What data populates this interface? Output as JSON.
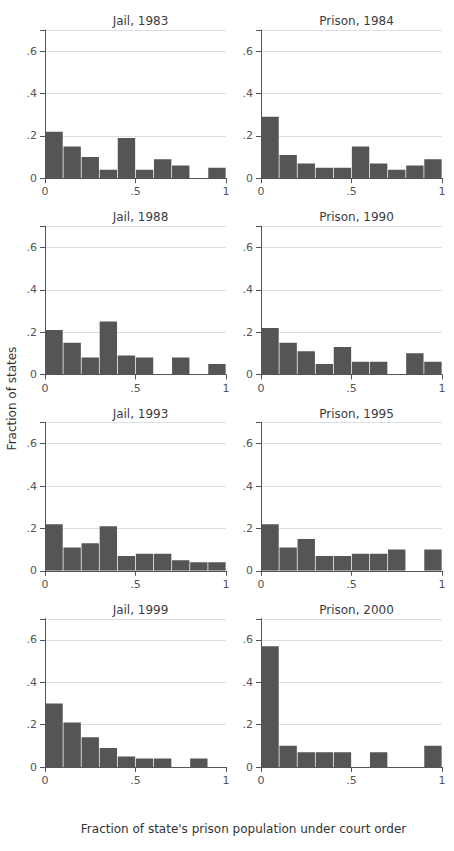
{
  "xlabel": "Fraction of state's prison population under court order",
  "ylabel": "Fraction of states",
  "chart_data": [
    {
      "type": "histogram",
      "title": "Jail, 1983",
      "color": "#555555",
      "grid": true,
      "bins": [
        0,
        0.1,
        0.2,
        0.3,
        0.4,
        0.5,
        0.6,
        0.7,
        0.8,
        0.9,
        1
      ],
      "values": [
        0.22,
        0.15,
        0.1,
        0.04,
        0.19,
        0.04,
        0.09,
        0.06,
        0.0,
        0.05
      ],
      "xlim": [
        0,
        1
      ],
      "xticks": [
        0,
        {
          "value": 0.5,
          "label": ".5"
        },
        1
      ],
      "ylim": [
        0,
        0.7
      ],
      "yticks": [
        0,
        {
          "value": 0.2,
          "label": ".2"
        },
        {
          "value": 0.4,
          "label": ".4"
        },
        {
          "value": 0.6,
          "label": ".6"
        }
      ]
    },
    {
      "type": "histogram",
      "title": "Prison, 1984",
      "color": "#555555",
      "grid": true,
      "bins": [
        0,
        0.1,
        0.2,
        0.3,
        0.4,
        0.5,
        0.6,
        0.7,
        0.8,
        0.9,
        1
      ],
      "values": [
        0.29,
        0.11,
        0.07,
        0.05,
        0.05,
        0.15,
        0.07,
        0.04,
        0.06,
        0.09
      ],
      "xlim": [
        0,
        1
      ],
      "xticks": [
        0,
        {
          "value": 0.5,
          "label": ".5"
        },
        1
      ],
      "ylim": [
        0,
        0.7
      ],
      "yticks": [
        0,
        {
          "value": 0.2,
          "label": ".2"
        },
        {
          "value": 0.4,
          "label": ".4"
        },
        {
          "value": 0.6,
          "label": ".6"
        }
      ]
    },
    {
      "type": "histogram",
      "title": "Jail, 1988",
      "color": "#555555",
      "grid": true,
      "bins": [
        0,
        0.1,
        0.2,
        0.3,
        0.4,
        0.5,
        0.6,
        0.7,
        0.8,
        0.9,
        1
      ],
      "values": [
        0.21,
        0.15,
        0.08,
        0.25,
        0.09,
        0.08,
        0.0,
        0.08,
        0.0,
        0.05
      ],
      "xlim": [
        0,
        1
      ],
      "xticks": [
        0,
        {
          "value": 0.5,
          "label": ".5"
        },
        1
      ],
      "ylim": [
        0,
        0.7
      ],
      "yticks": [
        0,
        {
          "value": 0.2,
          "label": ".2"
        },
        {
          "value": 0.4,
          "label": ".4"
        },
        {
          "value": 0.6,
          "label": ".6"
        }
      ]
    },
    {
      "type": "histogram",
      "title": "Prison, 1990",
      "color": "#555555",
      "grid": true,
      "bins": [
        0,
        0.1,
        0.2,
        0.3,
        0.4,
        0.5,
        0.6,
        0.7,
        0.8,
        0.9,
        1
      ],
      "values": [
        0.22,
        0.15,
        0.11,
        0.05,
        0.13,
        0.06,
        0.06,
        0.0,
        0.1,
        0.06
      ],
      "xlim": [
        0,
        1
      ],
      "xticks": [
        0,
        {
          "value": 0.5,
          "label": ".5"
        },
        1
      ],
      "ylim": [
        0,
        0.7
      ],
      "yticks": [
        0,
        {
          "value": 0.2,
          "label": ".2"
        },
        {
          "value": 0.4,
          "label": ".4"
        },
        {
          "value": 0.6,
          "label": ".6"
        }
      ]
    },
    {
      "type": "histogram",
      "title": "Jail, 1993",
      "color": "#555555",
      "grid": true,
      "bins": [
        0,
        0.1,
        0.2,
        0.3,
        0.4,
        0.5,
        0.6,
        0.7,
        0.8,
        0.9,
        1
      ],
      "values": [
        0.22,
        0.11,
        0.13,
        0.21,
        0.07,
        0.08,
        0.08,
        0.05,
        0.04,
        0.04
      ],
      "xlim": [
        0,
        1
      ],
      "xticks": [
        0,
        {
          "value": 0.5,
          "label": ".5"
        },
        1
      ],
      "ylim": [
        0,
        0.7
      ],
      "yticks": [
        0,
        {
          "value": 0.2,
          "label": ".2"
        },
        {
          "value": 0.4,
          "label": ".4"
        },
        {
          "value": 0.6,
          "label": ".6"
        }
      ]
    },
    {
      "type": "histogram",
      "title": "Prison, 1995",
      "color": "#555555",
      "grid": true,
      "bins": [
        0,
        0.1,
        0.2,
        0.3,
        0.4,
        0.5,
        0.6,
        0.7,
        0.8,
        0.9,
        1
      ],
      "values": [
        0.22,
        0.11,
        0.15,
        0.07,
        0.07,
        0.08,
        0.08,
        0.1,
        0.0,
        0.1
      ],
      "xlim": [
        0,
        1
      ],
      "xticks": [
        0,
        {
          "value": 0.5,
          "label": ".5"
        },
        1
      ],
      "ylim": [
        0,
        0.7
      ],
      "yticks": [
        0,
        {
          "value": 0.2,
          "label": ".2"
        },
        {
          "value": 0.4,
          "label": ".4"
        },
        {
          "value": 0.6,
          "label": ".6"
        }
      ]
    },
    {
      "type": "histogram",
      "title": "Jail, 1999",
      "color": "#555555",
      "grid": true,
      "bins": [
        0,
        0.1,
        0.2,
        0.3,
        0.4,
        0.5,
        0.6,
        0.7,
        0.8,
        0.9,
        1
      ],
      "values": [
        0.3,
        0.21,
        0.14,
        0.09,
        0.05,
        0.04,
        0.04,
        0.0,
        0.04,
        0.0
      ],
      "xlim": [
        0,
        1
      ],
      "xticks": [
        0,
        {
          "value": 0.5,
          "label": ".5"
        },
        1
      ],
      "ylim": [
        0,
        0.7
      ],
      "yticks": [
        0,
        {
          "value": 0.2,
          "label": ".2"
        },
        {
          "value": 0.4,
          "label": ".4"
        },
        {
          "value": 0.6,
          "label": ".6"
        }
      ]
    },
    {
      "type": "histogram",
      "title": "Prison, 2000",
      "color": "#555555",
      "grid": true,
      "bins": [
        0,
        0.1,
        0.2,
        0.3,
        0.4,
        0.5,
        0.6,
        0.7,
        0.8,
        0.9,
        1
      ],
      "values": [
        0.57,
        0.1,
        0.07,
        0.07,
        0.07,
        0.0,
        0.07,
        0.0,
        0.0,
        0.1
      ],
      "xlim": [
        0,
        1
      ],
      "xticks": [
        0,
        {
          "value": 0.5,
          "label": ".5"
        },
        1
      ],
      "ylim": [
        0,
        0.7
      ],
      "yticks": [
        0,
        {
          "value": 0.2,
          "label": ".2"
        },
        {
          "value": 0.4,
          "label": ".4"
        },
        {
          "value": 0.6,
          "label": ".6"
        }
      ]
    }
  ]
}
